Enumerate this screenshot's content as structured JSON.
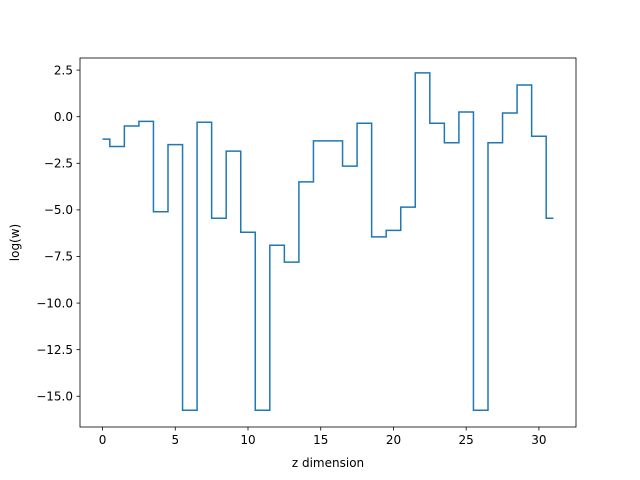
{
  "chart_data": {
    "type": "line",
    "drawstyle": "steps-mid",
    "title": "",
    "xlabel": "z dimension",
    "ylabel": "log(w)",
    "xlim": [
      -1.55,
      32.55
    ],
    "ylim": [
      -16.65,
      3.15
    ],
    "xticks": [
      0,
      5,
      10,
      15,
      20,
      25,
      30
    ],
    "xtick_labels": [
      "0",
      "5",
      "10",
      "15",
      "20",
      "25",
      "30"
    ],
    "yticks": [
      2.5,
      0.0,
      -2.5,
      -5.0,
      -7.5,
      -10.0,
      -12.5,
      -15.0
    ],
    "ytick_labels": [
      "2.5",
      "0.0",
      "−2.5",
      "−5.0",
      "−7.5",
      "−10.0",
      "−12.5",
      "−15.0"
    ],
    "grid": false,
    "series": [
      {
        "color": "#1f77b4",
        "x": [
          0,
          1,
          2,
          3,
          4,
          5,
          6,
          7,
          8,
          9,
          10,
          11,
          12,
          13,
          14,
          15,
          16,
          17,
          18,
          19,
          20,
          21,
          22,
          23,
          24,
          25,
          26,
          27,
          28,
          29,
          30,
          31
        ],
        "y": [
          -1.2,
          -1.6,
          -0.5,
          -0.25,
          -5.1,
          -1.5,
          -15.75,
          -0.3,
          -5.45,
          -1.85,
          -6.2,
          -15.75,
          -6.9,
          -7.8,
          -3.5,
          -1.3,
          -1.3,
          -2.65,
          -0.35,
          -6.45,
          -6.1,
          -4.85,
          2.35,
          -0.35,
          -1.4,
          0.25,
          -15.75,
          -1.4,
          0.2,
          1.7,
          -1.05,
          -5.45
        ]
      }
    ]
  }
}
